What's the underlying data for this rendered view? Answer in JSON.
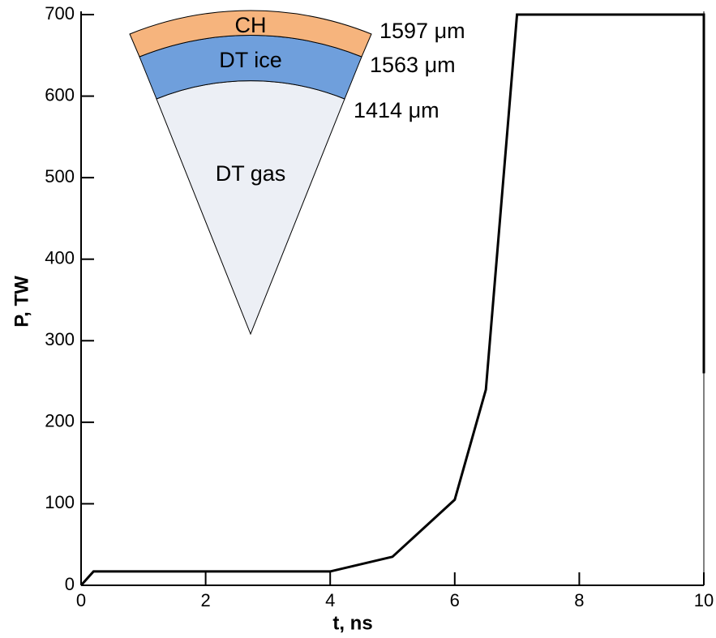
{
  "chart_data": {
    "type": "line",
    "x_label": "t, ns",
    "y_label": "P, TW",
    "x": [
      0,
      0.2,
      4,
      5,
      6,
      6.5,
      7,
      10,
      10
    ],
    "values": [
      0,
      17,
      17,
      35,
      105,
      240,
      700,
      700,
      260
    ],
    "color": "#000000",
    "xlim": [
      0,
      10
    ],
    "xticks": [
      0,
      2,
      4,
      6,
      8,
      10
    ],
    "ylim": [
      0,
      700
    ],
    "yticks": [
      0,
      100,
      200,
      300,
      400,
      500,
      600,
      700
    ],
    "inset": {
      "layers": [
        "CH",
        "DT ice",
        "DT gas"
      ],
      "radii": [
        "1597 μm",
        "1563 μm",
        "1414 μm"
      ]
    }
  }
}
